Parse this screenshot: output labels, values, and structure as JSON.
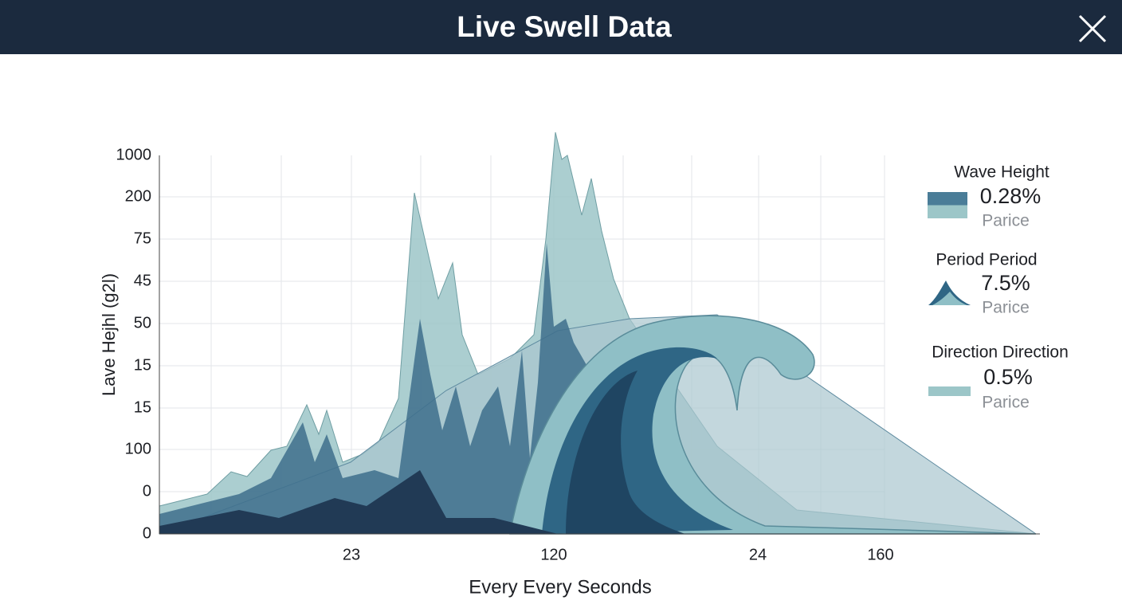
{
  "header": {
    "title": "Live Swell Data"
  },
  "chart": {
    "y_axis_title": "Lave Hejhl (g2l)",
    "y_labels": [
      "1000",
      "200",
      "75",
      "45",
      "50",
      "15",
      "15",
      "100",
      "0",
      "0"
    ],
    "x_axis_title": "Every Every Seconds",
    "x_labels": [
      "23",
      "120",
      "24",
      "160"
    ]
  },
  "legend": [
    {
      "title": "Wave Height",
      "value": "0.28%",
      "caption": "Parice"
    },
    {
      "title": "Period Period",
      "value": "7.5%",
      "caption": "Parice"
    },
    {
      "title": "Direction Direction",
      "value": "0.5%",
      "caption": "Parice"
    }
  ]
}
